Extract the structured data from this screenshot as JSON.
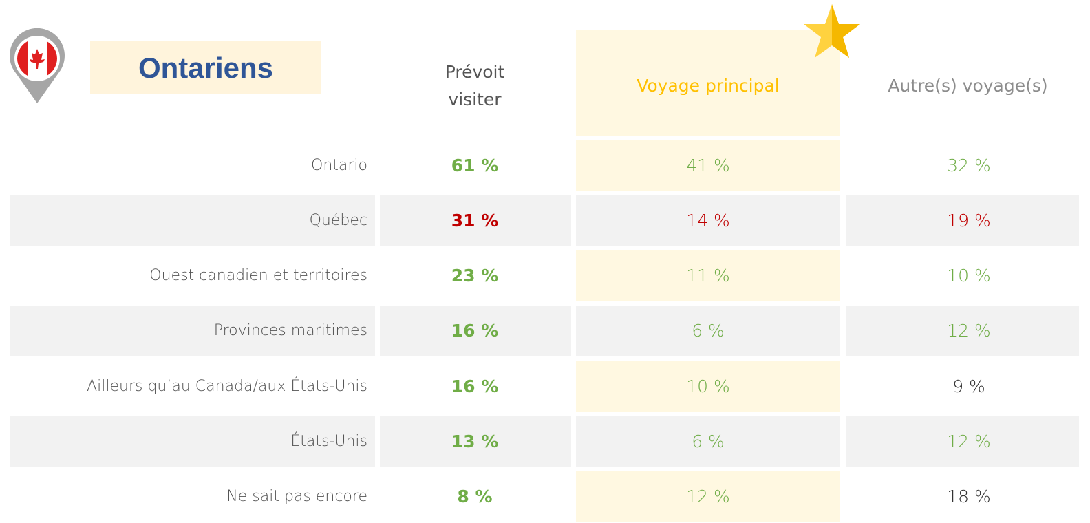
{
  "header": {
    "title": "Ontariens"
  },
  "columns": [
    "Prévoit visiter",
    "Voyage principal",
    "Autre(s) voyage(s)"
  ],
  "table": {
    "rows": [
      {
        "label": "Ontario",
        "values": [
          "61 %",
          "41 %",
          "32 %"
        ],
        "colors": [
          "#70ad47",
          "#70ad47",
          "#70ad47"
        ]
      },
      {
        "label": "Québec",
        "values": [
          "31 %",
          "14 %",
          "19 %"
        ],
        "colors": [
          "#c00000",
          "#c00000",
          "#c00000"
        ]
      },
      {
        "label": "Ouest canadien et territoires",
        "values": [
          "23 %",
          "11 %",
          "10 %"
        ],
        "colors": [
          "#70ad47",
          "#70ad47",
          "#70ad47"
        ]
      },
      {
        "label": "Provinces maritimes",
        "values": [
          "16 %",
          "6 %",
          "12 %"
        ],
        "colors": [
          "#70ad47",
          "#70ad47",
          "#70ad47"
        ]
      },
      {
        "label": "Ailleurs qu’au Canada/aux États-Unis",
        "values": [
          "16 %",
          "10 %",
          "9 %"
        ],
        "colors": [
          "#70ad47",
          "#70ad47",
          "#333333"
        ]
      },
      {
        "label": "États-Unis",
        "values": [
          "13 %",
          "6 %",
          "12 %"
        ],
        "colors": [
          "#70ad47",
          "#70ad47",
          "#70ad47"
        ]
      },
      {
        "label": "Ne sait pas encore",
        "values": [
          "8 %",
          "12 %",
          "18 %"
        ],
        "colors": [
          "#70ad47",
          "#70ad47",
          "#333333"
        ]
      }
    ]
  }
}
